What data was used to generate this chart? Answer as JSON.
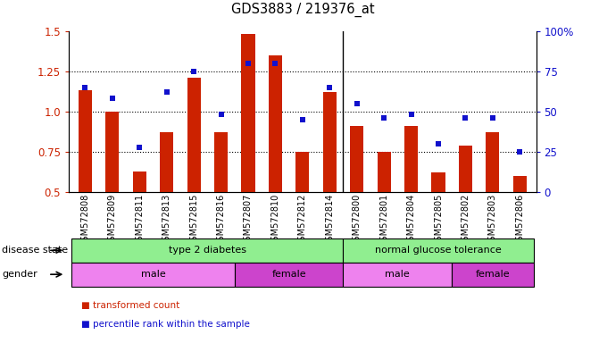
{
  "title": "GDS3883 / 219376_at",
  "samples": [
    "GSM572808",
    "GSM572809",
    "GSM572811",
    "GSM572813",
    "GSM572815",
    "GSM572816",
    "GSM572807",
    "GSM572810",
    "GSM572812",
    "GSM572814",
    "GSM572800",
    "GSM572801",
    "GSM572804",
    "GSM572805",
    "GSM572802",
    "GSM572803",
    "GSM572806"
  ],
  "bar_values": [
    1.13,
    1.0,
    0.63,
    0.87,
    1.21,
    0.87,
    1.48,
    1.35,
    0.75,
    1.12,
    0.91,
    0.75,
    0.91,
    0.62,
    0.79,
    0.87,
    0.6
  ],
  "dot_values": [
    65,
    58,
    28,
    62,
    75,
    48,
    80,
    80,
    45,
    65,
    55,
    46,
    48,
    30,
    46,
    46,
    25
  ],
  "ylim": [
    0.5,
    1.5
  ],
  "y2lim": [
    0,
    100
  ],
  "yticks": [
    0.5,
    0.75,
    1.0,
    1.25,
    1.5
  ],
  "y2ticks": [
    0,
    25,
    50,
    75,
    100
  ],
  "y2ticklabels": [
    "0",
    "25",
    "50",
    "75",
    "100%"
  ],
  "bar_color": "#cc2200",
  "dot_color": "#1111cc",
  "disease_color": "#90ee90",
  "gender_color_light": "#ee82ee",
  "gender_color_dark": "#cc44cc",
  "legend_bar_label": "transformed count",
  "legend_dot_label": "percentile rank within the sample",
  "disease_label": "disease state",
  "gender_label": "gender",
  "separator_x": 9.5,
  "n_samples": 17,
  "xlim": [
    -0.6,
    16.6
  ]
}
